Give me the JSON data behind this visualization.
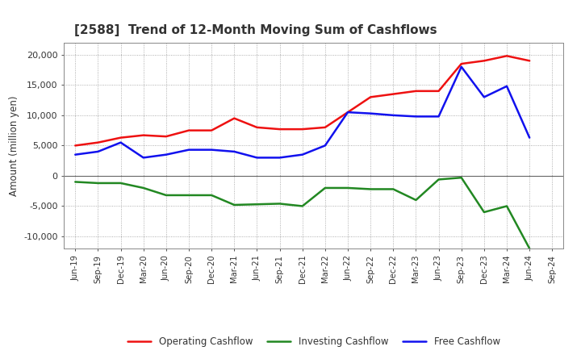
{
  "title": "[2588]  Trend of 12-Month Moving Sum of Cashflows",
  "ylabel": "Amount (million yen)",
  "background_color": "#ffffff",
  "grid_color": "#999999",
  "x_labels": [
    "Jun-19",
    "Sep-19",
    "Dec-19",
    "Mar-20",
    "Jun-20",
    "Sep-20",
    "Dec-20",
    "Mar-21",
    "Jun-21",
    "Sep-21",
    "Dec-21",
    "Mar-22",
    "Jun-22",
    "Sep-22",
    "Dec-22",
    "Mar-23",
    "Jun-23",
    "Sep-23",
    "Dec-23",
    "Mar-24",
    "Jun-24",
    "Sep-24"
  ],
  "operating": [
    5000,
    5500,
    6300,
    6700,
    6500,
    7500,
    7500,
    9500,
    8000,
    7700,
    7700,
    8000,
    10500,
    13000,
    13500,
    14000,
    14000,
    18500,
    19000,
    19800,
    19000,
    null
  ],
  "investing": [
    -1000,
    -1200,
    -1200,
    -2000,
    -3200,
    -3200,
    -3200,
    -4800,
    -4700,
    -4600,
    -5000,
    -2000,
    -2000,
    -2200,
    -2200,
    -4000,
    -600,
    -300,
    -6000,
    -5000,
    -12000,
    null
  ],
  "free": [
    3500,
    4000,
    5500,
    3000,
    3500,
    4300,
    4300,
    4000,
    3000,
    3000,
    3500,
    5000,
    10500,
    10300,
    10000,
    9800,
    9800,
    18000,
    13000,
    14800,
    6300,
    null
  ],
  "ylim": [
    -12000,
    22000
  ],
  "yticks": [
    -10000,
    -5000,
    0,
    5000,
    10000,
    15000,
    20000
  ],
  "operating_color": "#ee1111",
  "investing_color": "#228822",
  "free_color": "#1111ee",
  "line_width": 1.8,
  "title_color": "#333333",
  "tick_color": "#333333"
}
